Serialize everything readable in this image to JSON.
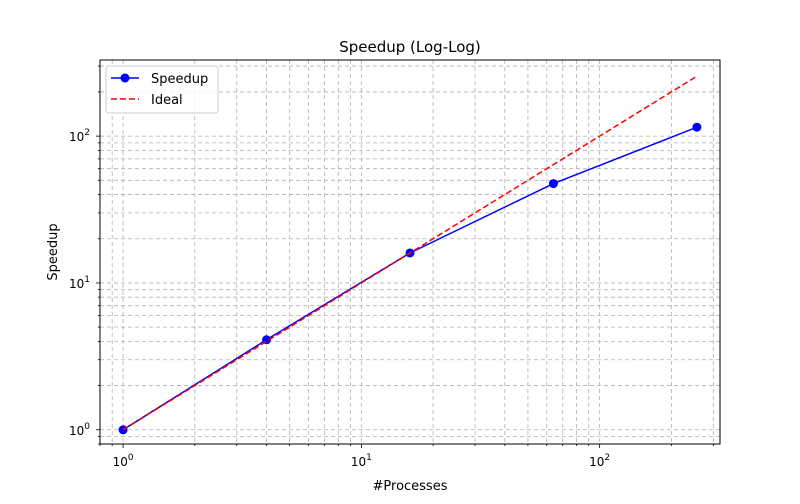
{
  "chart_data": {
    "type": "line",
    "title": "Speedup (Log-Log)",
    "xlabel": "#Processes",
    "ylabel": "Speedup",
    "xscale": "log",
    "yscale": "log",
    "xlim": [
      0.8,
      320
    ],
    "ylim": [
      0.8,
      330
    ],
    "grid": true,
    "legend_position": "top-left",
    "x_ticks": [
      {
        "base": "10",
        "exp": "0",
        "value": 1
      },
      {
        "base": "10",
        "exp": "1",
        "value": 10
      },
      {
        "base": "10",
        "exp": "2",
        "value": 100
      }
    ],
    "y_ticks": [
      {
        "base": "10",
        "exp": "0",
        "value": 1
      },
      {
        "base": "10",
        "exp": "1",
        "value": 10
      },
      {
        "base": "10",
        "exp": "2",
        "value": 100
      }
    ],
    "series": [
      {
        "name": "Speedup",
        "x": [
          1,
          4,
          16,
          64,
          256
        ],
        "y": [
          1.0,
          4.1,
          16.0,
          47.5,
          115
        ],
        "color": "#0000ff",
        "style": "solid",
        "marker": "circle"
      },
      {
        "name": "Ideal",
        "x": [
          1,
          4,
          16,
          64,
          256
        ],
        "y": [
          1,
          4,
          16,
          64,
          256
        ],
        "color": "#ff0000",
        "style": "dashed",
        "marker": "none"
      }
    ]
  }
}
